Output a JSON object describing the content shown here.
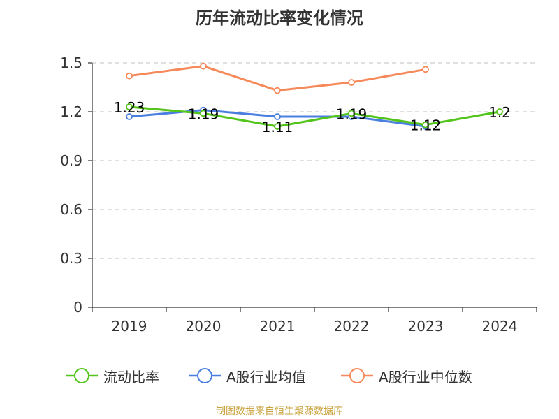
{
  "chart_data": {
    "type": "line",
    "title": "历年流动比率变化情况",
    "categories": [
      "2019",
      "2020",
      "2021",
      "2022",
      "2023",
      "2024"
    ],
    "ylim": [
      0,
      1.5
    ],
    "yticks": [
      "0",
      "0.3",
      "0.6",
      "0.9",
      "1.2",
      "1.5"
    ],
    "ytick_values": [
      0,
      0.3,
      0.6,
      0.9,
      1.2,
      1.5
    ],
    "grid": true,
    "legend_position": "bottom",
    "series": [
      {
        "name": "流动比率",
        "color": "#52c41a",
        "values": [
          1.23,
          1.19,
          1.11,
          1.19,
          1.12,
          1.2
        ],
        "labels": [
          "1.23",
          "1.19",
          "1.11",
          "1.19",
          "1.12",
          "1.2"
        ]
      },
      {
        "name": "A股行业均值",
        "color": "#4a7fe0",
        "values": [
          1.17,
          1.21,
          1.17,
          1.17,
          1.11,
          null
        ]
      },
      {
        "name": "A股行业中位数",
        "color": "#f5895a",
        "values": [
          1.42,
          1.48,
          1.33,
          1.38,
          1.46,
          null
        ]
      }
    ]
  },
  "source_note": "制图数据来自恒生聚源数据库"
}
